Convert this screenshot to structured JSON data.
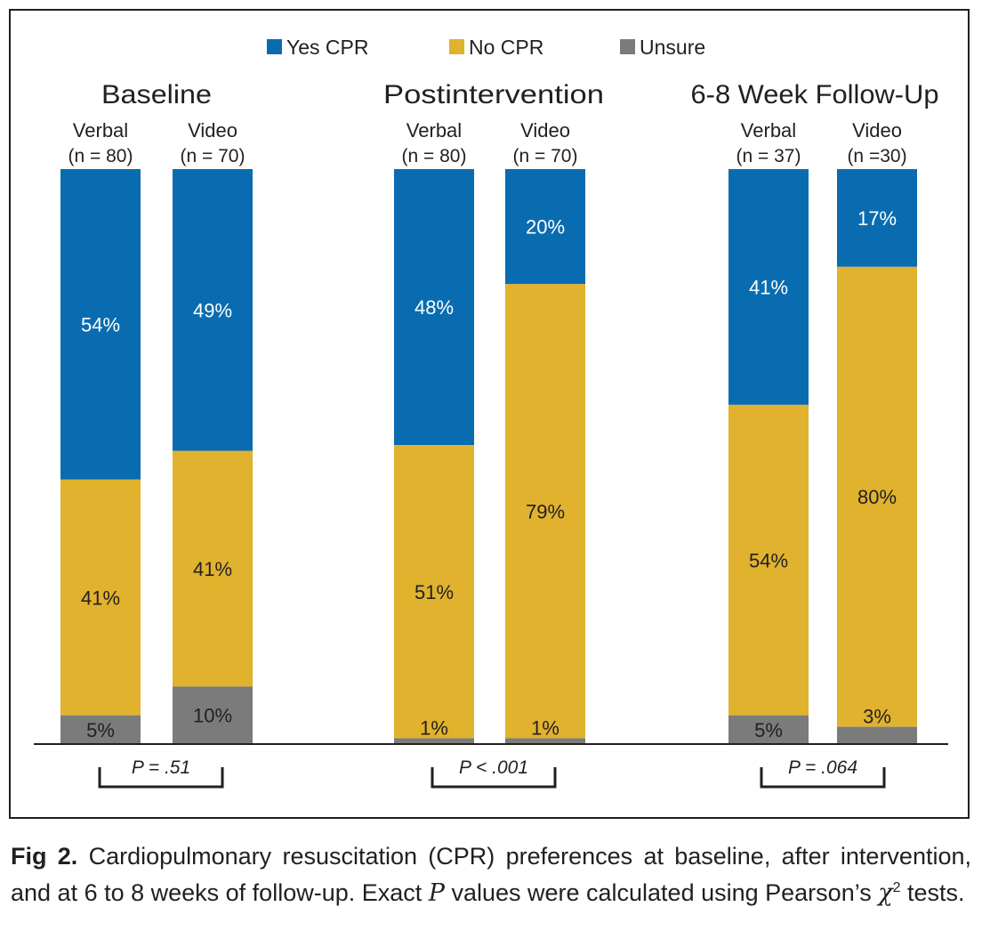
{
  "chart_data": {
    "type": "bar",
    "stacked": true,
    "legend": {
      "placement": "top-center",
      "entries": [
        {
          "name": "Yes CPR",
          "color": "#0a6cb0"
        },
        {
          "name": "No CPR",
          "color": "#e0b22e"
        },
        {
          "name": "Unsure",
          "color": "#7b7b7b"
        }
      ]
    },
    "ylim": [
      0,
      100
    ],
    "groups": [
      {
        "title": "Baseline",
        "p_value": "P = .51",
        "bars": [
          {
            "label": "Verbal",
            "n": "(n = 80)",
            "values": [
              54,
              41,
              5
            ],
            "labels": [
              "54%",
              "41%",
              "5%"
            ]
          },
          {
            "label": "Video",
            "n": "(n = 70)",
            "values": [
              49,
              41,
              10
            ],
            "labels": [
              "49%",
              "41%",
              "10%"
            ]
          }
        ]
      },
      {
        "title": "Postintervention",
        "p_value": "P < .001",
        "bars": [
          {
            "label": "Verbal",
            "n": "(n = 80)",
            "values": [
              48,
              51,
              1
            ],
            "labels": [
              "48%",
              "51%",
              "1%"
            ]
          },
          {
            "label": "Video",
            "n": "(n = 70)",
            "values": [
              20,
              79,
              1
            ],
            "labels": [
              "20%",
              "79%",
              "1%"
            ]
          }
        ]
      },
      {
        "title": "6-8 Week Follow-Up",
        "p_value": "P = .064",
        "bars": [
          {
            "label": "Verbal",
            "n": "(n = 37)",
            "values": [
              41,
              54,
              5
            ],
            "labels": [
              "41%",
              "54%",
              "5%"
            ]
          },
          {
            "label": "Video",
            "n": "(n =30)",
            "values": [
              17,
              80,
              3
            ],
            "labels": [
              "17%",
              "80%",
              "3%"
            ]
          }
        ]
      }
    ]
  },
  "caption": {
    "label": "Fig 2.",
    "text_1": " Cardiopulmonary resuscitation (CPR) preferences at baseline, after intervention, and at 6 to 8 weeks of follow-up. Exact ",
    "italic_p": "P",
    "text_2": " values were calculated using Pearson’s ",
    "chi": "χ",
    "sup": "2",
    "text_3": " tests."
  }
}
